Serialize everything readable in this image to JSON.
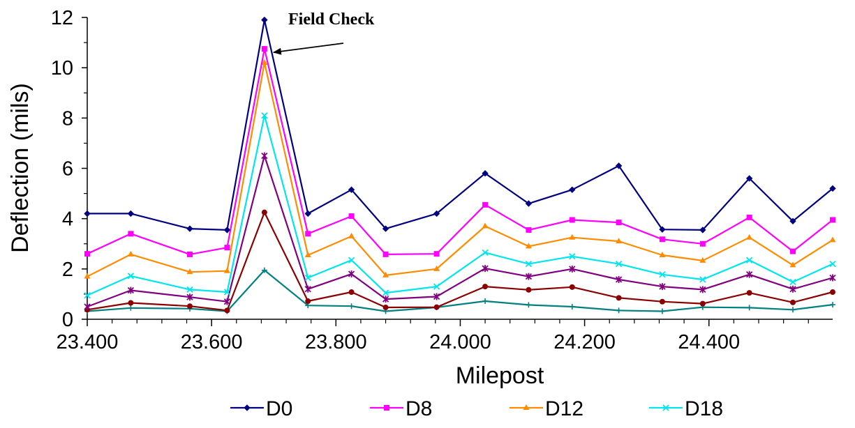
{
  "chart_data": {
    "type": "line",
    "title": "",
    "xlabel": "Milepost",
    "ylabel": "Deflection (mils)",
    "xlim": [
      23.4,
      24.599
    ],
    "ylim": [
      0,
      12
    ],
    "y_ticks": [
      "0",
      "2",
      "4",
      "6",
      "8",
      "10",
      "12"
    ],
    "x_tick_values": [
      23.4,
      23.6,
      23.8,
      24.0,
      24.2,
      24.4
    ],
    "x_tick_labels": [
      "23.400",
      "23.600",
      "23.800",
      "24.000",
      "24.200",
      "24.400"
    ],
    "grid": false,
    "legend_position": "bottom",
    "x": [
      23.4,
      23.47,
      23.565,
      23.625,
      23.685,
      23.755,
      23.825,
      23.88,
      23.962,
      24.04,
      24.11,
      24.18,
      24.255,
      24.325,
      24.39,
      24.465,
      24.535,
      24.599
    ],
    "series": [
      {
        "name": "D0",
        "color": "#000080",
        "marker": "diamond",
        "values": [
          4.2,
          4.2,
          3.6,
          3.55,
          11.9,
          4.2,
          5.15,
          3.6,
          4.2,
          5.8,
          4.6,
          5.15,
          6.1,
          3.57,
          3.55,
          5.6,
          3.9,
          5.2
        ]
      },
      {
        "name": "D8",
        "color": "#ff00ff",
        "marker": "square",
        "values": [
          2.6,
          3.4,
          2.58,
          2.85,
          10.75,
          3.4,
          4.1,
          2.58,
          2.6,
          4.55,
          3.55,
          3.95,
          3.85,
          3.18,
          3.0,
          4.05,
          2.7,
          3.95
        ]
      },
      {
        "name": "D12",
        "color": "#ff8c00",
        "marker": "triangle",
        "values": [
          1.7,
          2.58,
          1.88,
          1.92,
          10.2,
          2.55,
          3.3,
          1.75,
          2.0,
          3.7,
          2.9,
          3.25,
          3.1,
          2.55,
          2.33,
          3.25,
          2.15,
          3.15
        ]
      },
      {
        "name": "D18",
        "color": "#00e5ee",
        "marker": "x",
        "values": [
          0.95,
          1.72,
          1.18,
          1.08,
          8.1,
          1.65,
          2.35,
          1.05,
          1.3,
          2.65,
          2.2,
          2.5,
          2.2,
          1.78,
          1.58,
          2.35,
          1.48,
          2.2
        ]
      },
      {
        "color": "#800080",
        "marker": "star",
        "values": [
          0.5,
          1.15,
          0.88,
          0.7,
          6.5,
          1.2,
          1.8,
          0.8,
          0.9,
          2.02,
          1.7,
          2.0,
          1.58,
          1.3,
          1.18,
          1.78,
          1.2,
          1.65
        ]
      },
      {
        "color": "#8b0000",
        "marker": "circle",
        "values": [
          0.38,
          0.65,
          0.52,
          0.35,
          4.25,
          0.72,
          1.08,
          0.47,
          0.48,
          1.3,
          1.17,
          1.28,
          0.85,
          0.7,
          0.62,
          1.05,
          0.67,
          1.08
        ]
      },
      {
        "color": "#008080",
        "marker": "plus",
        "values": [
          0.32,
          0.45,
          0.42,
          0.32,
          1.95,
          0.55,
          0.52,
          0.32,
          0.47,
          0.72,
          0.57,
          0.5,
          0.35,
          0.32,
          0.48,
          0.46,
          0.38,
          0.58
        ]
      }
    ],
    "annotations": [
      {
        "text": "Field Check",
        "points_to_x": 23.685,
        "points_to_y": 10.75
      }
    ]
  }
}
